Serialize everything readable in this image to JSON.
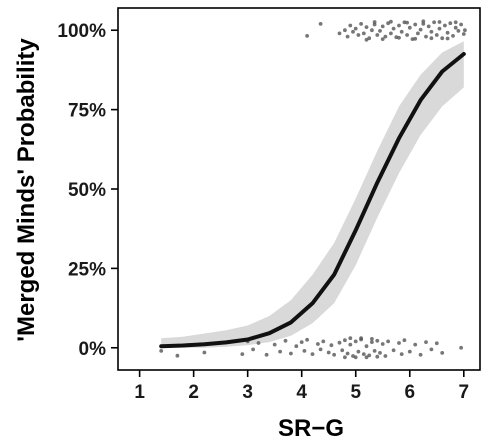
{
  "chart_data": {
    "type": "line",
    "title": "",
    "xlabel": "SR−G",
    "ylabel": "'Merged Minds' Probability",
    "xlim": [
      0.6,
      7.3
    ],
    "ylim": [
      -0.07,
      1.07
    ],
    "xticks": [
      1,
      2,
      3,
      4,
      5,
      6,
      7
    ],
    "yticks": [
      0,
      0.25,
      0.5,
      0.75,
      1.0
    ],
    "ytick_labels": [
      "0%",
      "25%",
      "50%",
      "75%",
      "100%"
    ],
    "grid": false,
    "legend": "none",
    "colors": {
      "curve": "#111111",
      "ribbon": "#d9d9d9",
      "points": "#555555"
    },
    "series": [
      {
        "kind": "logistic-fit",
        "x": [
          1.4,
          1.8,
          2.2,
          2.6,
          3.0,
          3.4,
          3.8,
          4.2,
          4.6,
          5.0,
          5.4,
          5.8,
          6.2,
          6.6,
          7.0
        ],
        "y": [
          0.005,
          0.007,
          0.011,
          0.017,
          0.026,
          0.046,
          0.08,
          0.14,
          0.23,
          0.37,
          0.52,
          0.66,
          0.78,
          0.87,
          0.925
        ],
        "ci_low": [
          0.0,
          0.0,
          0.0,
          0.003,
          0.008,
          0.018,
          0.038,
          0.077,
          0.14,
          0.26,
          0.41,
          0.55,
          0.67,
          0.76,
          0.82
        ],
        "ci_high": [
          0.03,
          0.035,
          0.045,
          0.055,
          0.07,
          0.1,
          0.15,
          0.23,
          0.33,
          0.47,
          0.62,
          0.76,
          0.86,
          0.93,
          0.965
        ]
      },
      {
        "kind": "jitter-points-outcome-1",
        "x": [
          4.1,
          4.35,
          4.7,
          4.8,
          4.85,
          4.9,
          4.95,
          5.0,
          5.05,
          5.1,
          5.15,
          5.2,
          5.25,
          5.3,
          5.35,
          5.4,
          5.45,
          5.5,
          5.55,
          5.6,
          5.65,
          5.7,
          5.75,
          5.8,
          5.85,
          5.9,
          5.95,
          6.0,
          6.05,
          6.1,
          6.15,
          6.2,
          6.25,
          6.3,
          6.35,
          6.4,
          6.45,
          6.5,
          6.55,
          6.6,
          6.65,
          6.7,
          6.75,
          6.8,
          6.85,
          6.9,
          6.95,
          7.0,
          7.02,
          5.2,
          5.5,
          5.8,
          6.1,
          6.4,
          6.7,
          5.35,
          5.65,
          5.95,
          6.25,
          6.55,
          6.85
        ],
        "y": [
          0.982,
          1.02,
          0.99,
          1.0,
          0.98,
          1.015,
          0.995,
          1.005,
          0.985,
          1.02,
          0.99,
          1.01,
          0.975,
          1.0,
          1.018,
          0.985,
          0.998,
          1.012,
          0.98,
          1.022,
          0.99,
          1.005,
          0.978,
          1.015,
          0.995,
          1.025,
          0.985,
          1.008,
          0.972,
          1.018,
          0.99,
          1.002,
          1.02,
          0.98,
          1.012,
          0.995,
          1.025,
          0.985,
          1.005,
          0.975,
          1.015,
          0.992,
          1.022,
          0.982,
          1.008,
          0.998,
          1.018,
          0.988,
          1.0,
          0.97,
          0.972,
          0.976,
          0.973,
          0.975,
          0.974,
          1.026,
          1.027,
          1.024,
          1.028,
          1.026,
          1.025
        ]
      },
      {
        "kind": "jitter-points-outcome-0",
        "x": [
          1.4,
          1.7,
          1.9,
          2.2,
          2.9,
          3.0,
          3.1,
          3.2,
          3.35,
          3.5,
          3.6,
          3.7,
          3.8,
          3.9,
          4.0,
          4.05,
          4.1,
          4.2,
          4.3,
          4.35,
          4.4,
          4.5,
          4.55,
          4.6,
          4.7,
          4.75,
          4.8,
          4.85,
          4.9,
          4.95,
          5.0,
          5.05,
          5.1,
          5.15,
          5.2,
          5.25,
          5.3,
          5.35,
          5.4,
          5.45,
          5.5,
          5.55,
          5.6,
          5.7,
          5.8,
          5.85,
          5.9,
          6.0,
          6.1,
          6.2,
          6.3,
          6.4,
          6.5,
          6.6,
          6.95,
          5.0,
          5.2,
          5.4,
          5.1,
          5.3,
          4.9,
          4.8
        ],
        "y": [
          -0.01,
          -0.025,
          0.008,
          -0.015,
          -0.02,
          0.02,
          -0.005,
          0.015,
          -0.022,
          0.01,
          -0.012,
          0.022,
          -0.018,
          0.005,
          0.018,
          -0.01,
          0.025,
          -0.02,
          0.012,
          -0.005,
          0.02,
          -0.015,
          0.008,
          -0.022,
          0.016,
          -0.008,
          0.024,
          -0.018,
          0.01,
          -0.026,
          0.02,
          -0.012,
          0.026,
          -0.02,
          0.005,
          -0.024,
          0.018,
          -0.01,
          0.022,
          -0.016,
          0.012,
          -0.026,
          0.02,
          -0.008,
          0.015,
          -0.02,
          0.024,
          -0.012,
          0.01,
          -0.022,
          0.018,
          -0.005,
          0.014,
          -0.016,
          0.0,
          -0.03,
          -0.03,
          -0.028,
          0.03,
          0.028,
          0.03,
          -0.03
        ]
      }
    ]
  }
}
